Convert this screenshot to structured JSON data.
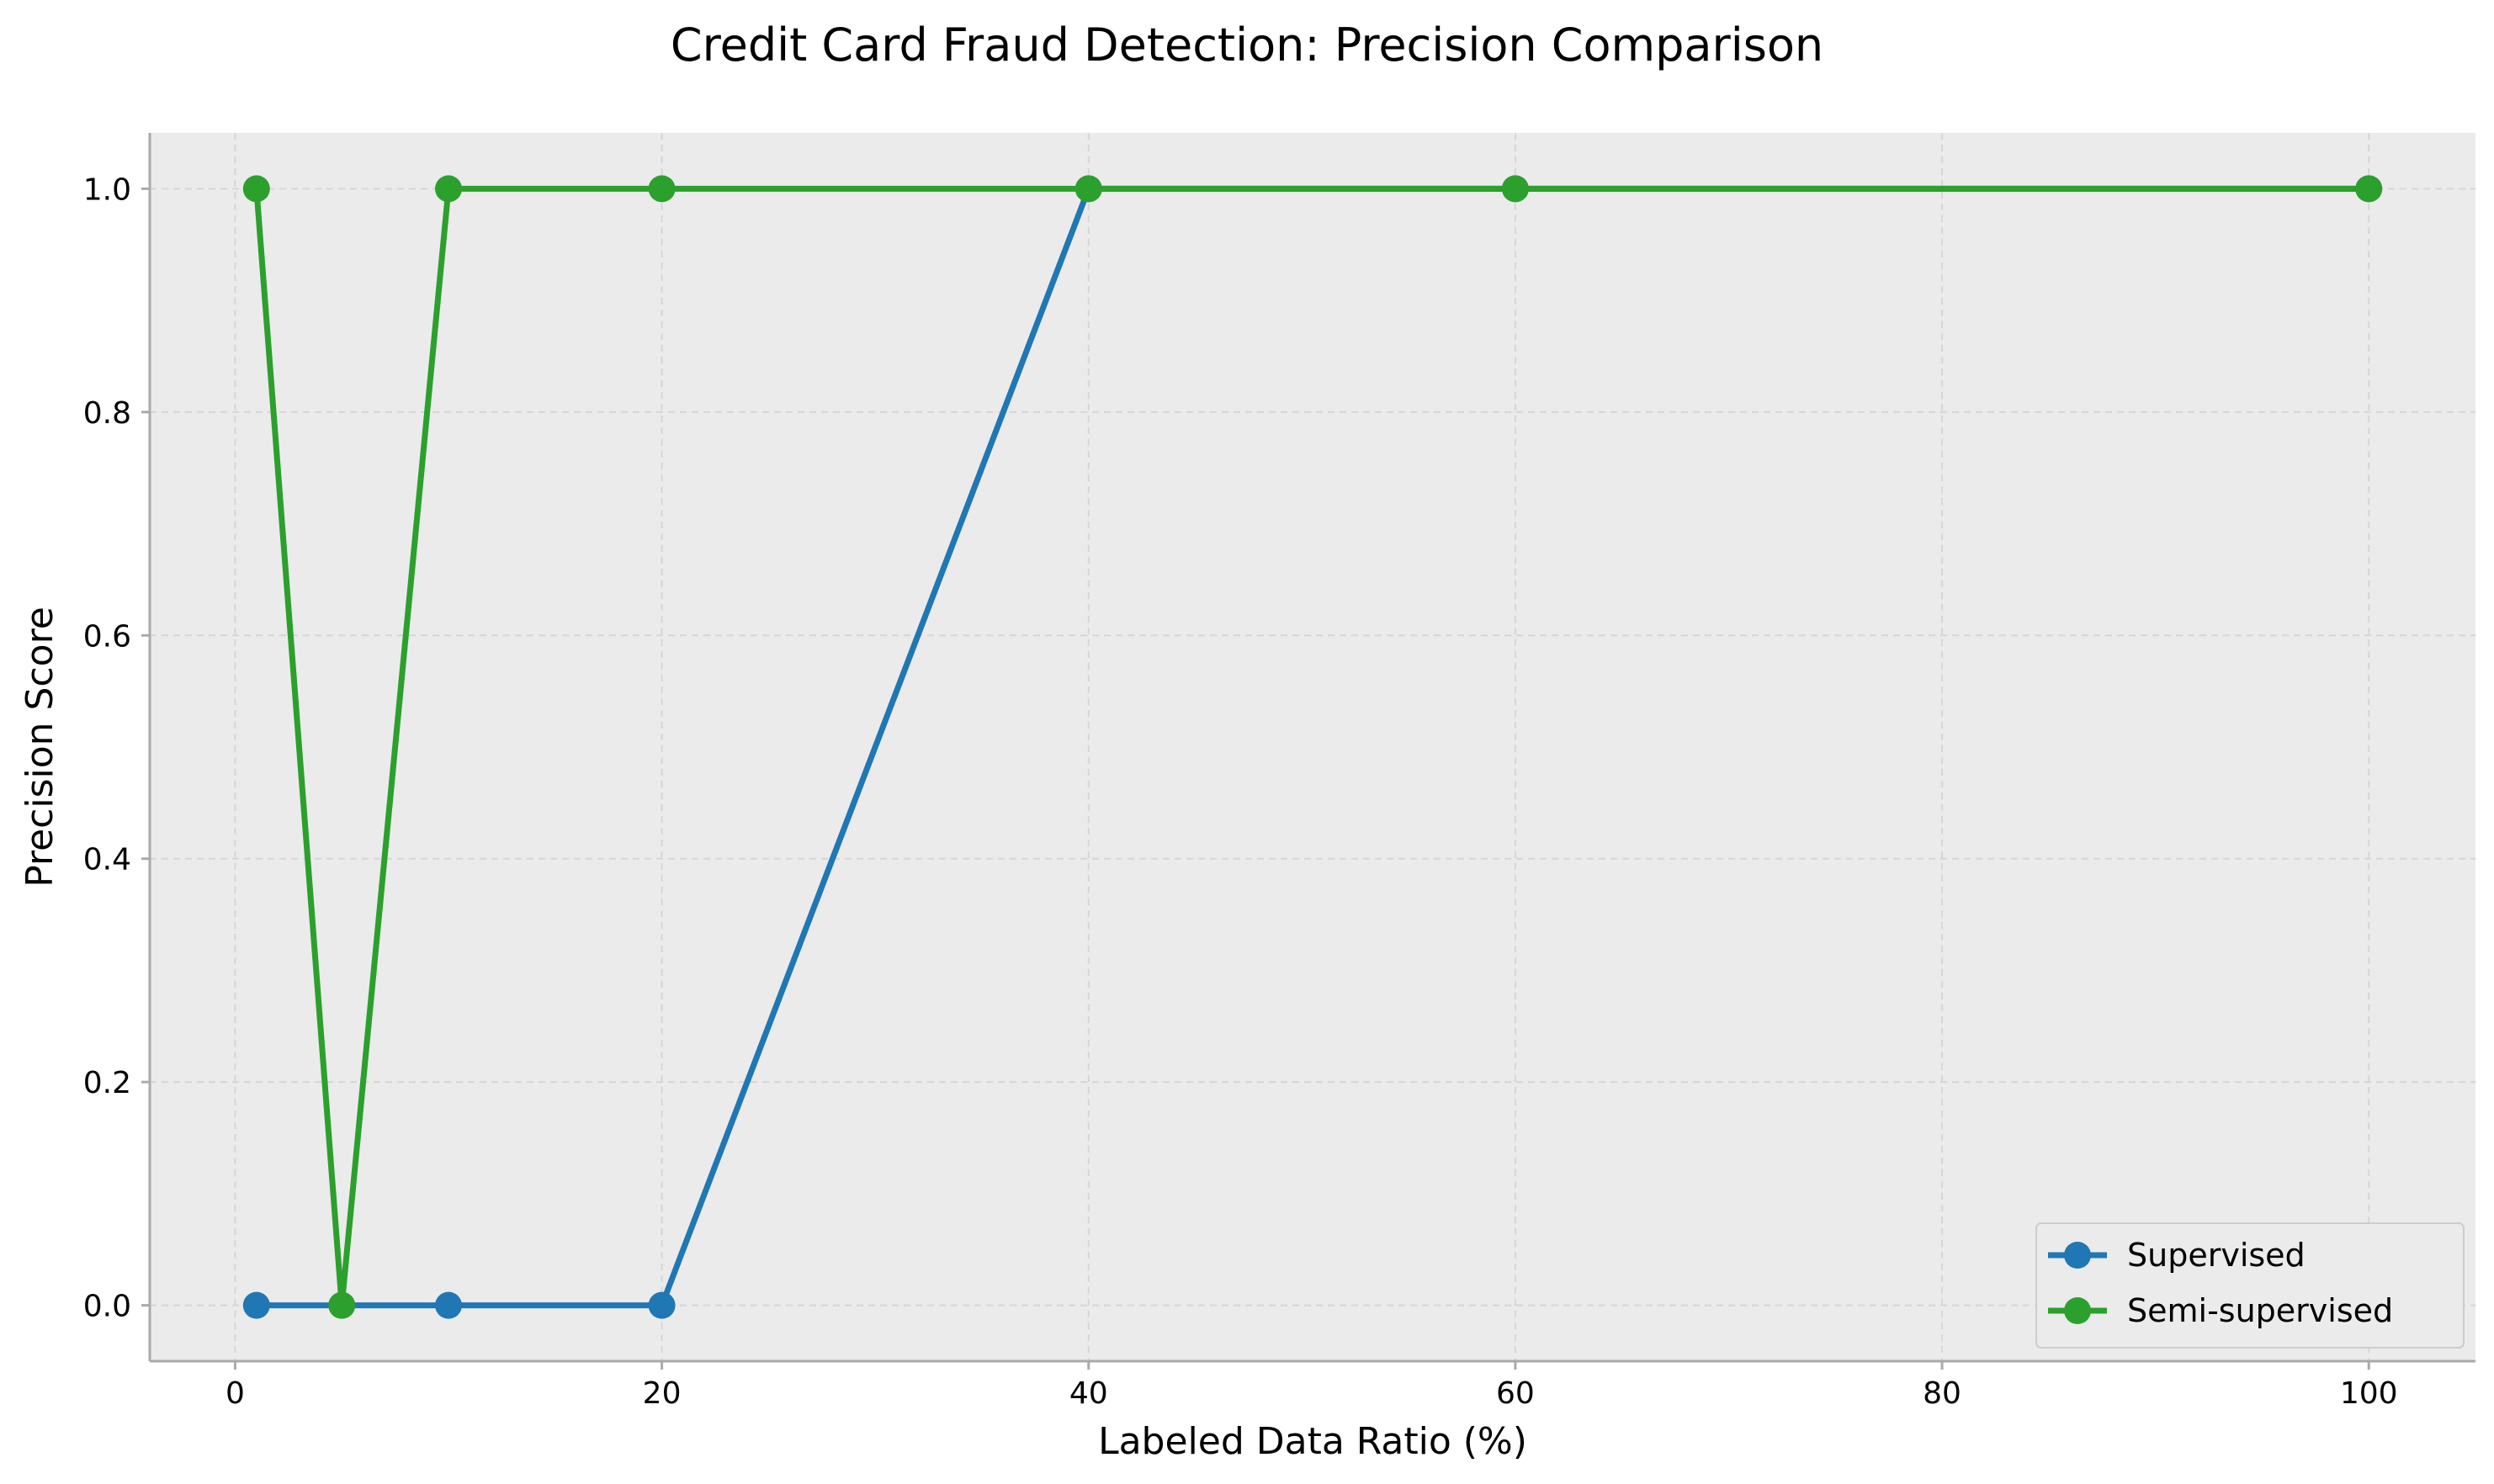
{
  "chart_data": {
    "type": "line",
    "title": "Credit Card Fraud Detection: Precision Comparison",
    "xlabel": "Labeled Data Ratio (%)",
    "ylabel": "Precision Score",
    "xlim": [
      -4,
      105
    ],
    "ylim": [
      -0.05,
      1.05
    ],
    "xticks": [
      0,
      20,
      40,
      60,
      80,
      100
    ],
    "yticks": [
      0.0,
      0.2,
      0.4,
      0.6,
      0.8,
      1.0
    ],
    "ytick_labels": [
      "0.0",
      "0.2",
      "0.4",
      "0.6",
      "0.8",
      "1.0"
    ],
    "grid": true,
    "legend_position": "bottom-right",
    "x": [
      1,
      5,
      10,
      20,
      40,
      60,
      100
    ],
    "series": [
      {
        "name": "Supervised",
        "color": "#1f77b4",
        "values": [
          0.0,
          0.0,
          0.0,
          0.0,
          1.0,
          1.0,
          1.0
        ]
      },
      {
        "name": "Semi-supervised",
        "color": "#2ca02c",
        "values": [
          1.0,
          0.0,
          1.0,
          1.0,
          1.0,
          1.0,
          1.0
        ]
      }
    ],
    "colors": {
      "plot_background": "#ebebeb",
      "axis": "#aaaaaa",
      "grid": "#d6d6d6"
    }
  }
}
